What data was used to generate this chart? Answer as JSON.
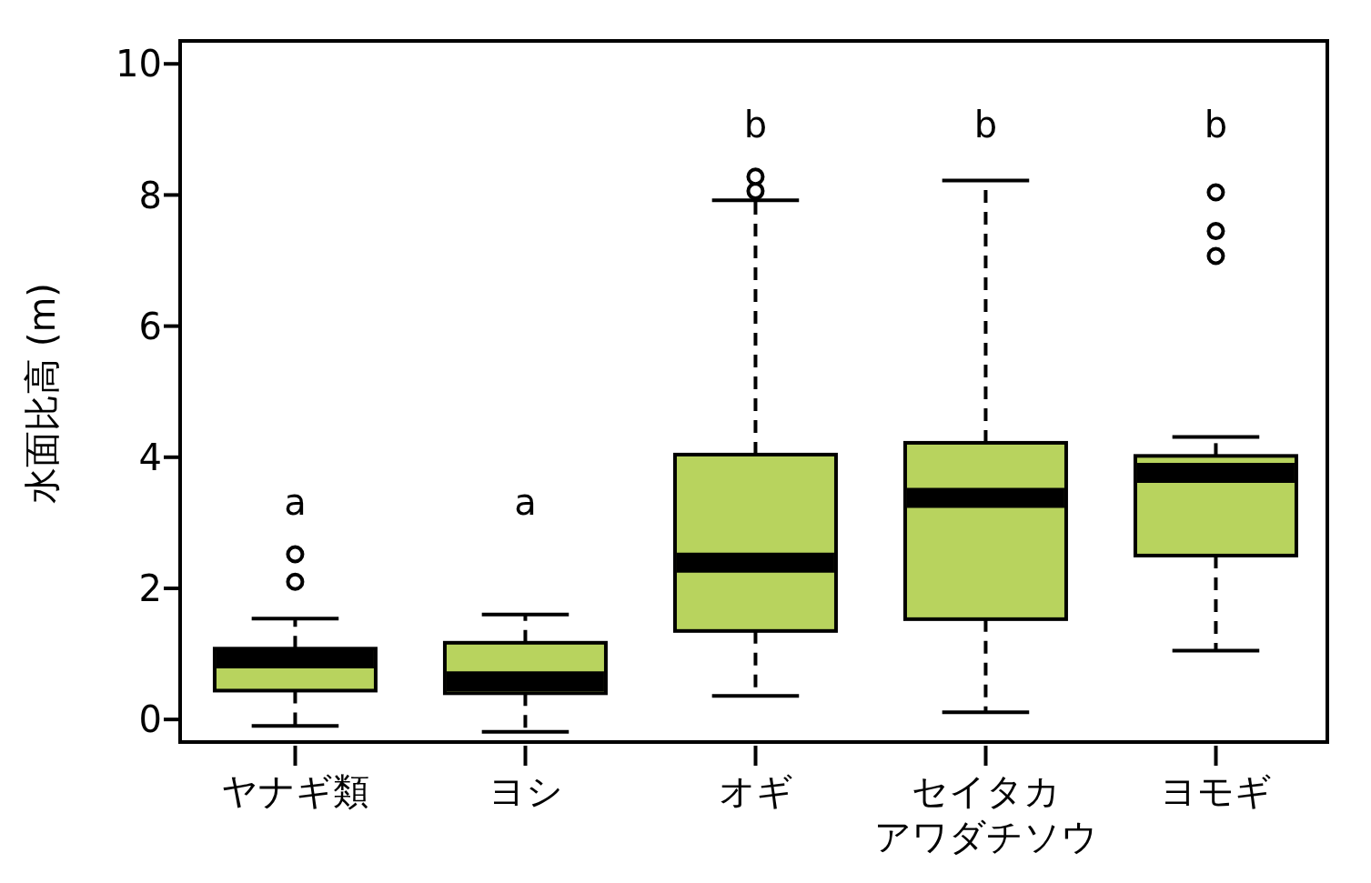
{
  "chart_data": {
    "type": "box",
    "ylabel": "水面比高 (m)",
    "categories": [
      "ヤナギ類",
      "ヨシ",
      "オギ",
      "セイタカアワダチソウ",
      "ヨモギ"
    ],
    "color": "#b8d35e",
    "boxes": [
      {
        "low": -0.1,
        "q1": 0.44,
        "median": 0.93,
        "q3": 1.08,
        "high": 1.54,
        "outliers": [
          2.1,
          2.52
        ]
      },
      {
        "low": -0.19,
        "q1": 0.4,
        "median": 0.58,
        "q3": 1.17,
        "high": 1.6
      },
      {
        "low": 0.36,
        "q1": 1.35,
        "median": 2.39,
        "q3": 4.04,
        "high": 7.92,
        "outliers": [
          8.06,
          8.28
        ]
      },
      {
        "low": 0.11,
        "q1": 1.53,
        "median": 3.38,
        "q3": 4.22,
        "high": 8.22
      },
      {
        "low": 1.05,
        "q1": 2.5,
        "median": 3.76,
        "q3": 4.02,
        "high": 4.31,
        "outliers": [
          7.07,
          7.45,
          8.04
        ]
      }
    ],
    "annotations": [
      "a",
      "a",
      "b",
      "b",
      "b"
    ],
    "ylim": [
      -0.4,
      10.35
    ],
    "yticks": [
      0,
      2,
      4,
      6,
      8,
      10
    ],
    "grid": false,
    "legend": false
  }
}
